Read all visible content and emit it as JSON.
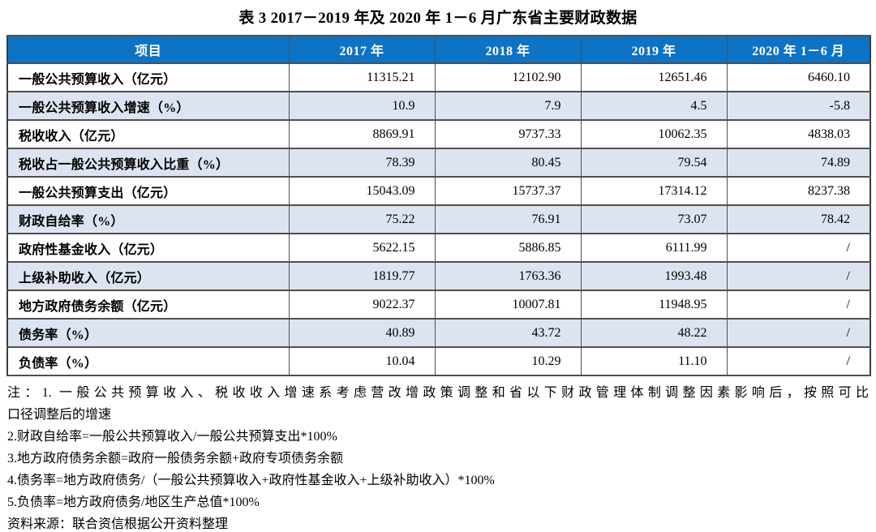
{
  "title": "表 3  2017－2019 年及 2020 年 1－6 月广东省主要财政数据",
  "table": {
    "columns": [
      "项目",
      "2017 年",
      "2018 年",
      "2019 年",
      "2020 年 1－6 月"
    ],
    "rows": [
      {
        "label": "一般公共预算收入（亿元）",
        "values": [
          "11315.21",
          "12102.90",
          "12651.46",
          "6460.10"
        ]
      },
      {
        "label": "一般公共预算收入增速（%）",
        "values": [
          "10.9",
          "7.9",
          "4.5",
          "-5.8"
        ]
      },
      {
        "label": "税收收入（亿元）",
        "values": [
          "8869.91",
          "9737.33",
          "10062.35",
          "4838.03"
        ]
      },
      {
        "label": "税收占一般公共预算收入比重（%）",
        "values": [
          "78.39",
          "80.45",
          "79.54",
          "74.89"
        ]
      },
      {
        "label": "一般公共预算支出（亿元）",
        "values": [
          "15043.09",
          "15737.37",
          "17314.12",
          "8237.38"
        ]
      },
      {
        "label": "财政自给率（%）",
        "values": [
          "75.22",
          "76.91",
          "73.07",
          "78.42"
        ]
      },
      {
        "label": "政府性基金收入（亿元）",
        "values": [
          "5622.15",
          "5886.85",
          "6111.99",
          "/"
        ]
      },
      {
        "label": "上级补助收入（亿元）",
        "values": [
          "1819.77",
          "1763.36",
          "1993.48",
          "/"
        ]
      },
      {
        "label": "地方政府债务余额（亿元）",
        "values": [
          "9022.37",
          "10007.81",
          "11948.95",
          "/"
        ]
      },
      {
        "label": "债务率（%）",
        "values": [
          "40.89",
          "43.72",
          "48.22",
          "/"
        ]
      },
      {
        "label": "负债率（%）",
        "values": [
          "10.04",
          "10.29",
          "11.10",
          "/"
        ]
      }
    ]
  },
  "notes": {
    "lines": [
      "注：1. 一般公共预算收入、税收收入增速系考虑营改增政策调整和省以下财政管理体制调整因素影响后，按照可比",
      "口径调整后的增速",
      "2.财政自给率=一般公共预算收入/一般公共预算支出*100%",
      "3.地方政府债务余额=政府一般债务余额+政府专项债务余额",
      "4.债务率=地方政府债务/（一般公共预算收入+政府性基金收入+上级补助收入）*100%",
      "5.负债率=地方政府债务/地区生产总值*100%",
      "资料来源：联合资信根据公开资料整理"
    ]
  },
  "colors": {
    "header_bg": "#0D73C5",
    "header_text": "#FFFFFF",
    "row_alt_bg": "#DCE4F1",
    "border": "#4F4F4F",
    "border_dark": "#3C3C3C"
  }
}
